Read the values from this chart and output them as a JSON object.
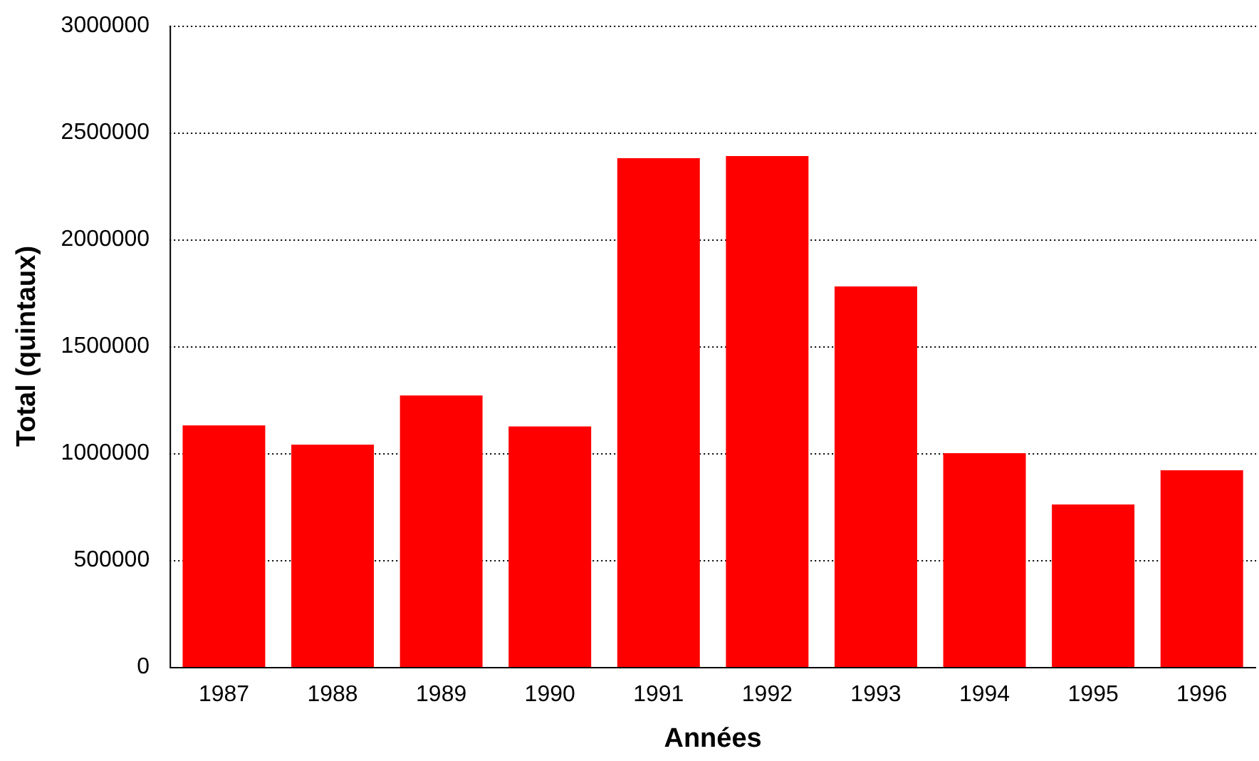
{
  "chart_data": {
    "type": "bar",
    "xlabel": "Années",
    "ylabel": "Total (quintaux)",
    "categories": [
      "1987",
      "1988",
      "1989",
      "1990",
      "1991",
      "1992",
      "1993",
      "1994",
      "1995",
      "1996"
    ],
    "values": [
      1130000,
      1040000,
      1270000,
      1125000,
      2380000,
      2390000,
      1780000,
      1000000,
      760000,
      920000
    ],
    "color": "#ff0000",
    "ylim": [
      0,
      3000000
    ],
    "yticks": [
      0,
      500000,
      1000000,
      1500000,
      2000000,
      2500000,
      3000000
    ],
    "grid": "y",
    "legend": false
  }
}
